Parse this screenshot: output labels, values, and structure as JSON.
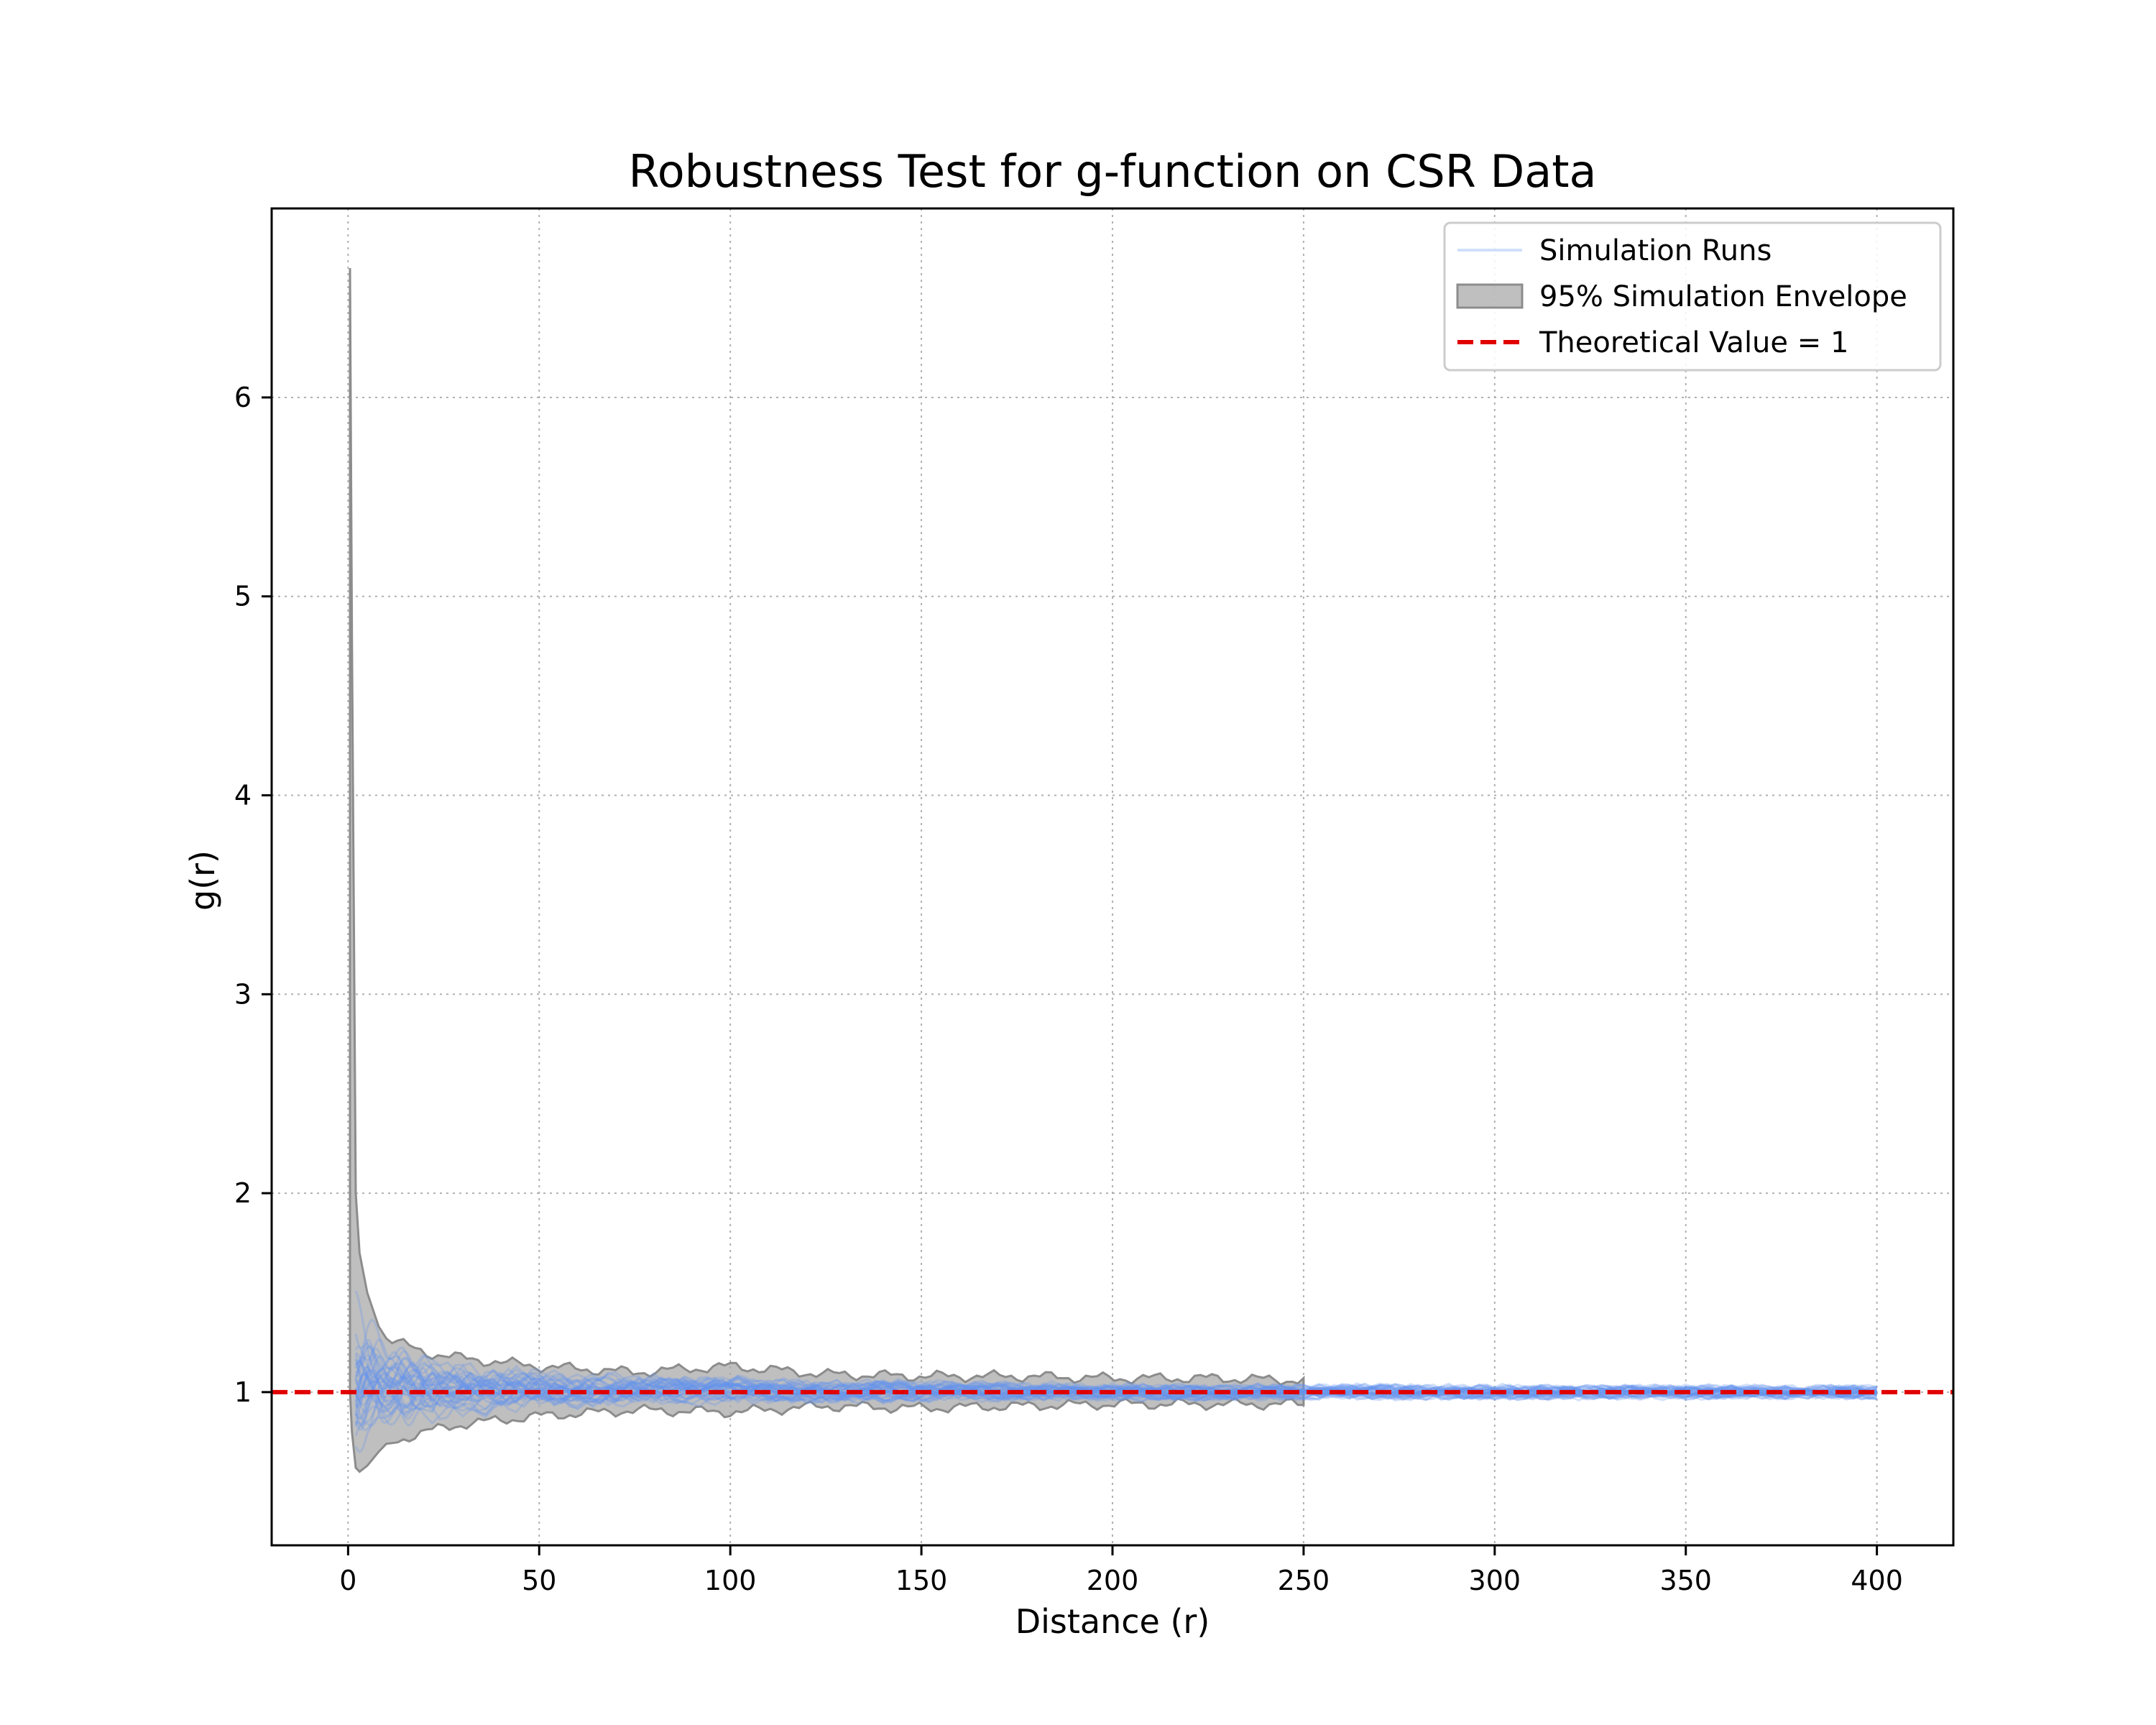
{
  "chart_data": {
    "type": "line",
    "title": "Robustness Test for g-function on CSR Data",
    "xlabel": "Distance (r)",
    "ylabel": "g(r)",
    "xlim": [
      -20,
      420
    ],
    "ylim": [
      0.23,
      6.95
    ],
    "xticks": [
      0,
      50,
      100,
      150,
      200,
      250,
      300,
      350,
      400
    ],
    "yticks": [
      1,
      2,
      3,
      4,
      5,
      6
    ],
    "grid": true,
    "legend_position": "top-right",
    "colors": {
      "runs": "#6495ED",
      "envelope_fill": "#A9A9A9",
      "envelope_edge": "#8C8C8C",
      "theoretical": "#E00000"
    },
    "series": [
      {
        "name": "Simulation Runs",
        "kind": "line-bundle",
        "r_range": [
          0,
          400
        ],
        "spread_profile": [
          {
            "r": 2,
            "low": 0.55,
            "high": 1.55
          },
          {
            "r": 5,
            "low": 0.72,
            "high": 1.45
          },
          {
            "r": 10,
            "low": 0.8,
            "high": 1.28
          },
          {
            "r": 25,
            "low": 0.85,
            "high": 1.18
          },
          {
            "r": 50,
            "low": 0.9,
            "high": 1.13
          },
          {
            "r": 100,
            "low": 0.92,
            "high": 1.1
          },
          {
            "r": 200,
            "low": 0.94,
            "high": 1.06
          },
          {
            "r": 400,
            "low": 0.95,
            "high": 1.05
          }
        ]
      },
      {
        "name": "95% Simulation Envelope",
        "kind": "band",
        "r": [
          0.5,
          1,
          2,
          3,
          5,
          8,
          10,
          20,
          30,
          40,
          50,
          75,
          100,
          125,
          150,
          175,
          200,
          225,
          250
        ],
        "lower": [
          1.0,
          0.8,
          0.62,
          0.6,
          0.63,
          0.7,
          0.74,
          0.8,
          0.84,
          0.86,
          0.88,
          0.91,
          0.9,
          0.93,
          0.92,
          0.93,
          0.94,
          0.94,
          0.94
        ],
        "upper": [
          6.65,
          4.8,
          2.0,
          1.7,
          1.5,
          1.33,
          1.27,
          1.2,
          1.17,
          1.15,
          1.13,
          1.1,
          1.13,
          1.09,
          1.08,
          1.08,
          1.07,
          1.07,
          1.06
        ]
      },
      {
        "name": "Theoretical Value = 1",
        "kind": "hline",
        "y": 1
      }
    ]
  }
}
